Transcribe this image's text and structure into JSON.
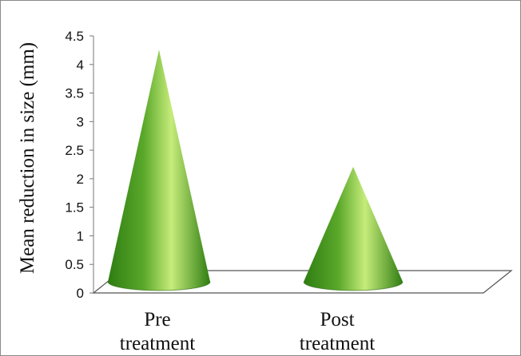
{
  "chart_data": {
    "type": "bar",
    "bar_shape": "3d-cone",
    "categories": [
      [
        "Pre",
        "treatment"
      ],
      [
        "Post",
        "treatment"
      ]
    ],
    "values": [
      4.3,
      2.25
    ],
    "ylabel": "Mean reduction in size (mm)",
    "ylim": [
      0,
      4.5
    ],
    "yticks": [
      "0",
      "0.5",
      "1",
      "1.5",
      "2",
      "2.5",
      "3",
      "3.5",
      "4",
      "4.5"
    ],
    "grid": false,
    "legend": "none",
    "colors": {
      "cone_dark": "#2f7d12",
      "cone_mid": "#5aa82a",
      "cone_light": "#c6ec7a",
      "floor_line": "#555555",
      "axis_line": "#777777"
    }
  }
}
